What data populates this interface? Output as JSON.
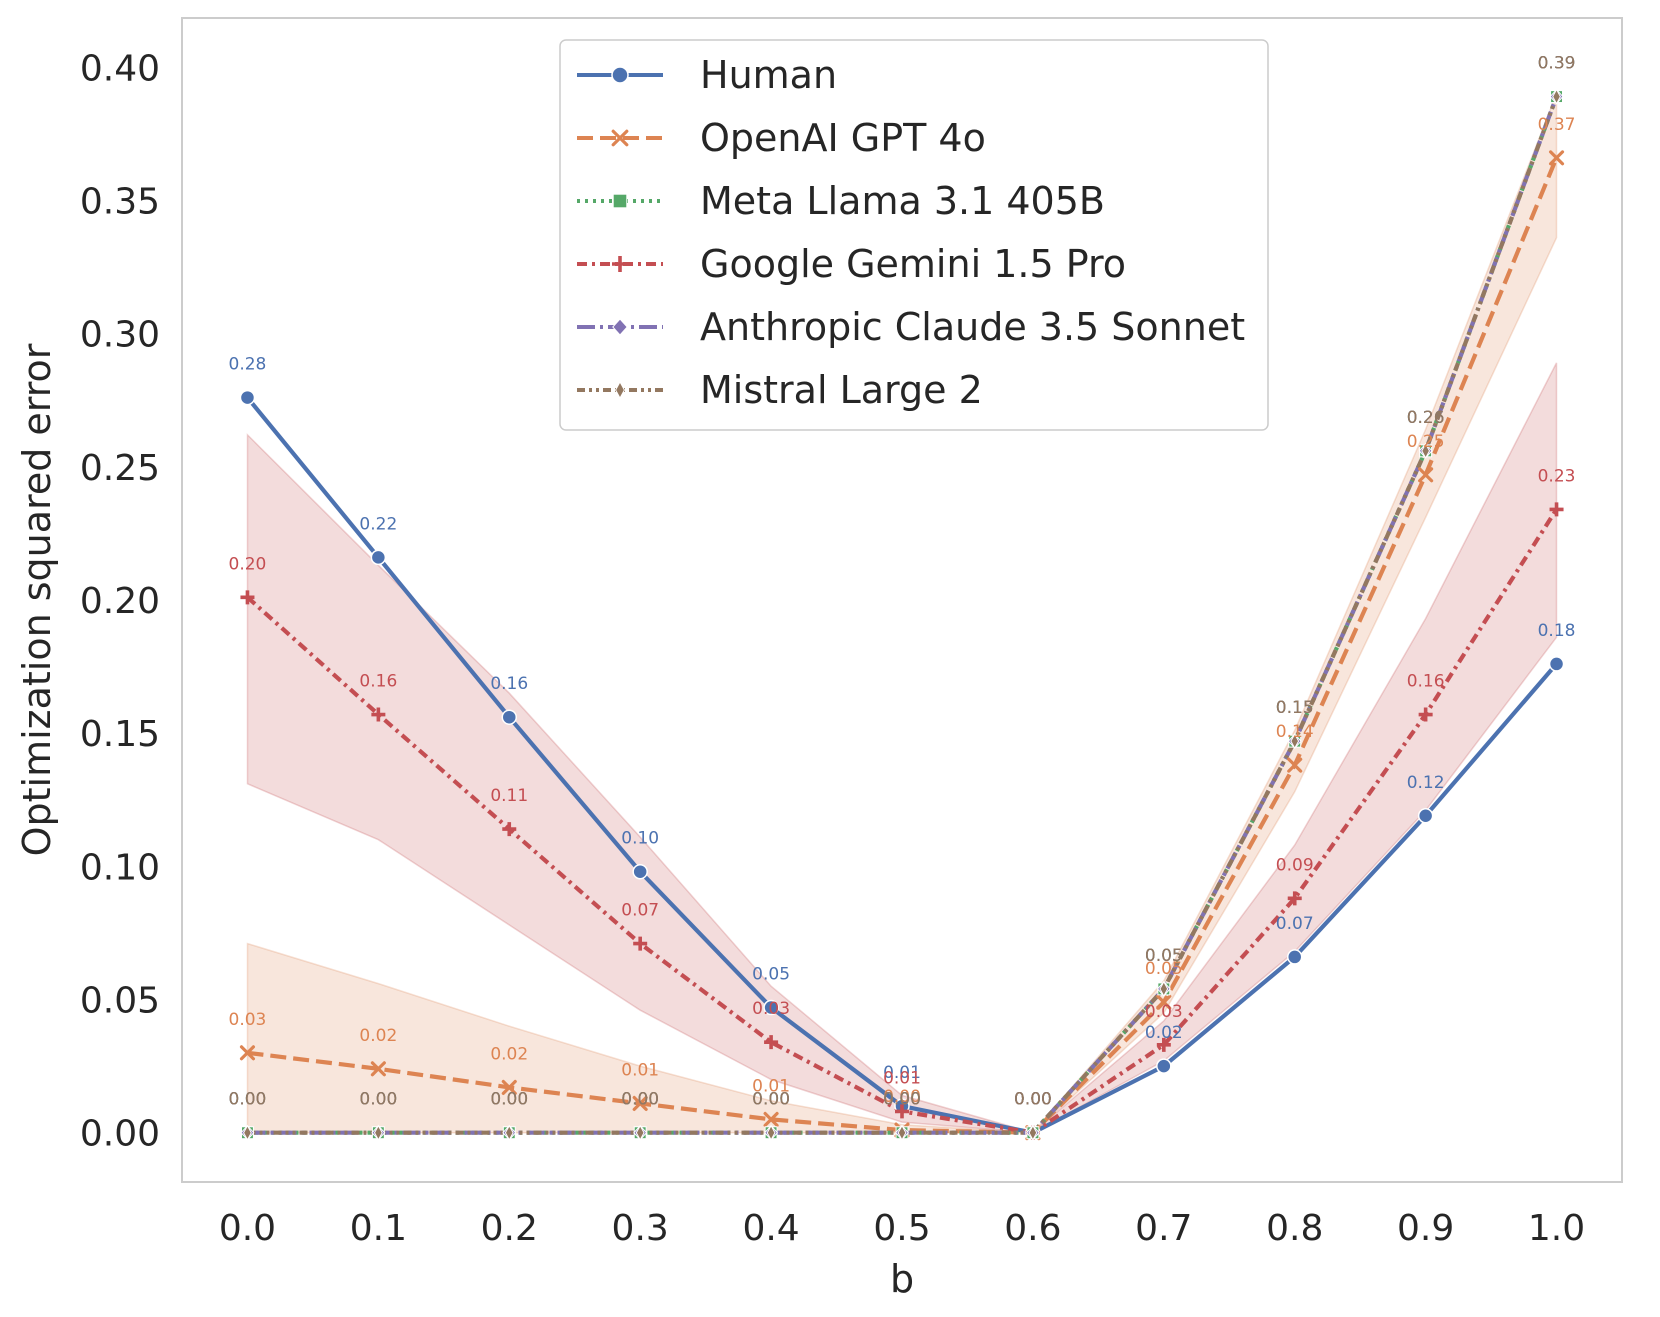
{
  "chart_data": {
    "type": "line",
    "title": "",
    "xlabel": "b",
    "ylabel": "Optimization squared error",
    "x": [
      0.0,
      0.1,
      0.2,
      0.3,
      0.4,
      0.5,
      0.6,
      0.7,
      0.8,
      0.9,
      1.0
    ],
    "x_tick_labels": [
      "0.0",
      "0.1",
      "0.2",
      "0.3",
      "0.4",
      "0.5",
      "0.6",
      "0.7",
      "0.8",
      "0.9",
      "1.0"
    ],
    "y_tick_labels": [
      "0.00",
      "0.05",
      "0.10",
      "0.15",
      "0.20",
      "0.25",
      "0.30",
      "0.35",
      "0.40"
    ],
    "y_ticks": [
      0.0,
      0.05,
      0.1,
      0.15,
      0.2,
      0.25,
      0.3,
      0.35,
      0.4
    ],
    "xlim": [
      -0.05,
      1.05
    ],
    "ylim": [
      -0.0185,
      0.4185
    ],
    "grid": false,
    "legend_position": "top-center",
    "series": [
      {
        "name": "Human",
        "color": "#4c72b0",
        "dash": "solid",
        "marker": "circle",
        "values": [
          0.276,
          0.216,
          0.156,
          0.098,
          0.047,
          0.01,
          0.0,
          0.025,
          0.066,
          0.119,
          0.176
        ],
        "labels": [
          "0.28",
          "0.22",
          "0.16",
          "0.10",
          "0.05",
          "0.01",
          "0.00",
          "0.02",
          "0.07",
          "0.12",
          "0.18"
        ],
        "band": null
      },
      {
        "name": "OpenAI GPT 4o",
        "color": "#dd8452",
        "dash": "long-dash",
        "marker": "x",
        "values": [
          0.03,
          0.024,
          0.017,
          0.011,
          0.005,
          0.001,
          0.0,
          0.049,
          0.138,
          0.247,
          0.366
        ],
        "labels": [
          "0.03",
          "0.02",
          "0.02",
          "0.01",
          "0.01",
          "0.00",
          "0.00",
          "0.05",
          "0.14",
          "0.25",
          "0.37"
        ],
        "band": {
          "lower": [
            0.0,
            0.0,
            0.0,
            0.0,
            0.0,
            0.0,
            0.0,
            0.045,
            0.128,
            0.231,
            0.336
          ],
          "upper": [
            0.071,
            0.056,
            0.04,
            0.025,
            0.012,
            0.003,
            0.0,
            0.057,
            0.151,
            0.264,
            0.39
          ]
        }
      },
      {
        "name": "Meta Llama 3.1 405B",
        "color": "#55a868",
        "dash": "dotted",
        "marker": "square",
        "values": [
          0.0,
          0.0,
          0.0,
          0.0,
          0.0,
          0.0,
          0.0,
          0.054,
          0.147,
          0.256,
          0.389
        ],
        "labels": [
          "0.00",
          "0.00",
          "0.00",
          "0.00",
          "0.00",
          "0.00",
          "0.00",
          "0.05",
          "0.15",
          "0.26",
          "0.39"
        ],
        "band": null
      },
      {
        "name": "Google Gemini 1.5 Pro",
        "color": "#c44e52",
        "dash": "dash-dot",
        "marker": "plus",
        "values": [
          0.201,
          0.157,
          0.114,
          0.071,
          0.034,
          0.008,
          0.0,
          0.033,
          0.088,
          0.157,
          0.234
        ],
        "labels": [
          "0.20",
          "0.16",
          "0.11",
          "0.07",
          "0.03",
          "0.01",
          "0.00",
          "0.03",
          "0.09",
          "0.16",
          "0.23"
        ],
        "band": {
          "lower": [
            0.131,
            0.11,
            0.078,
            0.046,
            0.02,
            0.004,
            0.0,
            0.027,
            0.068,
            0.121,
            0.186
          ],
          "upper": [
            0.262,
            0.213,
            0.165,
            0.111,
            0.055,
            0.014,
            0.0,
            0.042,
            0.108,
            0.193,
            0.289
          ]
        }
      },
      {
        "name": "Anthropic Claude 3.5 Sonnet",
        "color": "#8172b3",
        "dash": "long-dash-dot",
        "marker": "diamond",
        "values": [
          0.0,
          0.0,
          0.0,
          0.0,
          0.0,
          0.0,
          0.0,
          0.054,
          0.147,
          0.256,
          0.389
        ],
        "labels": [
          "0.00",
          "0.00",
          "0.00",
          "0.00",
          "0.00",
          "0.00",
          "0.00",
          "0.05",
          "0.15",
          "0.26",
          "0.39"
        ],
        "band": null
      },
      {
        "name": "Mistral Large 2",
        "color": "#937860",
        "dash": "dash-dot-dot",
        "marker": "diamond-thin",
        "values": [
          0.0,
          0.0,
          0.0,
          0.0,
          0.0,
          0.0,
          0.0,
          0.054,
          0.147,
          0.256,
          0.389
        ],
        "labels": [
          "0.00",
          "0.00",
          "0.00",
          "0.00",
          "0.00",
          "0.00",
          "0.00",
          "0.05",
          "0.15",
          "0.26",
          "0.39"
        ],
        "band": null
      }
    ]
  }
}
